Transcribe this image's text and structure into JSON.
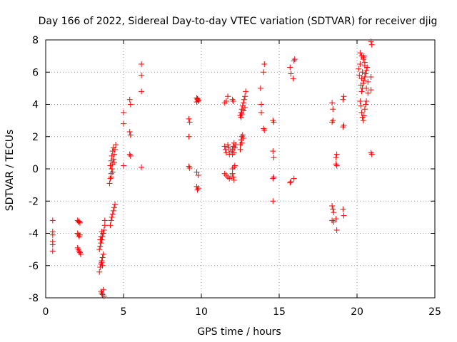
{
  "chart_data": {
    "type": "scatter",
    "title": "Day 166 of 2022, Sidereal Day-to-day VTEC variation (SDTVAR) for receiver djig",
    "xlabel": "GPS time / hours",
    "ylabel": "SDTVAR / TECUs",
    "xlim": [
      0,
      25
    ],
    "ylim": [
      -8,
      8
    ],
    "x_ticks": [
      0,
      5,
      10,
      15,
      20,
      25
    ],
    "y_ticks": [
      -8,
      -6,
      -4,
      -2,
      0,
      2,
      4,
      6,
      8
    ],
    "x_tick_labels": [
      "0",
      "5",
      "10",
      "15",
      "20",
      "25"
    ],
    "y_tick_labels": [
      "-8",
      "-6",
      "-4",
      "-2",
      "0",
      "2",
      "4",
      "6",
      "8"
    ],
    "grid": true,
    "marker": "+",
    "color": "#ff0000",
    "series": [
      {
        "name": "SDTVAR",
        "points": [
          [
            0.45,
            -3.2
          ],
          [
            0.45,
            -3.9
          ],
          [
            0.45,
            -4.1
          ],
          [
            0.45,
            -4.5
          ],
          [
            0.45,
            -4.7
          ],
          [
            0.45,
            -5.1
          ],
          [
            2.05,
            -3.2
          ],
          [
            2.1,
            -3.3
          ],
          [
            2.15,
            -3.25
          ],
          [
            2.2,
            -3.35
          ],
          [
            2.05,
            -4.0
          ],
          [
            2.1,
            -4.1
          ],
          [
            2.15,
            -4.2
          ],
          [
            2.2,
            -4.1
          ],
          [
            2.05,
            -4.9
          ],
          [
            2.1,
            -5.0
          ],
          [
            2.15,
            -5.1
          ],
          [
            2.2,
            -5.2
          ],
          [
            2.25,
            -5.3
          ],
          [
            3.45,
            -6.4
          ],
          [
            3.5,
            -6.1
          ],
          [
            3.55,
            -5.9
          ],
          [
            3.6,
            -5.7
          ],
          [
            3.65,
            -5.5
          ],
          [
            3.7,
            -5.3
          ],
          [
            3.45,
            -5.0
          ],
          [
            3.5,
            -4.8
          ],
          [
            3.55,
            -4.6
          ],
          [
            3.6,
            -4.4
          ],
          [
            3.65,
            -4.2
          ],
          [
            3.7,
            -4.0
          ],
          [
            3.75,
            -3.8
          ],
          [
            3.8,
            -3.5
          ],
          [
            3.8,
            -3.2
          ],
          [
            3.5,
            -4.4
          ],
          [
            3.55,
            -4.2
          ],
          [
            3.6,
            -3.9
          ],
          [
            3.6,
            -5.8
          ],
          [
            3.65,
            -6.0
          ],
          [
            3.55,
            -7.6
          ],
          [
            3.6,
            -7.7
          ],
          [
            3.65,
            -7.8
          ],
          [
            3.7,
            -7.5
          ],
          [
            3.75,
            -7.9
          ],
          [
            4.15,
            -3.5
          ],
          [
            4.2,
            -3.2
          ],
          [
            4.25,
            -3.0
          ],
          [
            4.3,
            -2.8
          ],
          [
            4.35,
            -2.6
          ],
          [
            4.4,
            -2.4
          ],
          [
            4.45,
            -2.2
          ],
          [
            4.1,
            -0.9
          ],
          [
            4.15,
            -0.6
          ],
          [
            4.2,
            -0.3
          ],
          [
            4.25,
            0.0
          ],
          [
            4.3,
            0.3
          ],
          [
            4.35,
            0.6
          ],
          [
            4.4,
            0.9
          ],
          [
            4.45,
            1.2
          ],
          [
            4.5,
            1.5
          ],
          [
            4.15,
            0.2
          ],
          [
            4.2,
            0.5
          ],
          [
            4.25,
            0.8
          ],
          [
            4.3,
            1.1
          ],
          [
            4.35,
            1.3
          ],
          [
            4.2,
            -0.5
          ],
          [
            4.3,
            -0.2
          ],
          [
            4.4,
            0.4
          ],
          [
            5.0,
            3.5
          ],
          [
            5.0,
            2.8
          ],
          [
            5.0,
            0.2
          ],
          [
            5.4,
            4.3
          ],
          [
            5.45,
            4.0
          ],
          [
            5.4,
            2.3
          ],
          [
            5.45,
            2.1
          ],
          [
            5.4,
            0.9
          ],
          [
            5.45,
            0.8
          ],
          [
            6.15,
            6.5
          ],
          [
            6.15,
            5.8
          ],
          [
            6.15,
            4.8
          ],
          [
            6.15,
            0.1
          ],
          [
            9.2,
            3.1
          ],
          [
            9.25,
            2.9
          ],
          [
            9.2,
            2.0
          ],
          [
            9.2,
            0.15
          ],
          [
            9.25,
            0.05
          ],
          [
            9.7,
            4.4
          ],
          [
            9.75,
            4.3
          ],
          [
            9.8,
            4.2
          ],
          [
            9.7,
            4.15
          ],
          [
            9.75,
            4.35
          ],
          [
            9.8,
            4.25
          ],
          [
            9.7,
            -0.2
          ],
          [
            9.8,
            -0.4
          ],
          [
            9.7,
            -1.1
          ],
          [
            9.75,
            -1.3
          ],
          [
            9.8,
            -1.2
          ],
          [
            11.5,
            4.1
          ],
          [
            11.6,
            4.2
          ],
          [
            11.7,
            4.5
          ],
          [
            12.0,
            4.3
          ],
          [
            12.05,
            4.2
          ],
          [
            11.5,
            1.4
          ],
          [
            11.55,
            1.2
          ],
          [
            11.6,
            1.0
          ],
          [
            11.7,
            1.5
          ],
          [
            11.75,
            1.3
          ],
          [
            11.8,
            0.9
          ],
          [
            11.9,
            1.1
          ],
          [
            12.0,
            1.2
          ],
          [
            12.05,
            1.4
          ],
          [
            12.1,
            1.6
          ],
          [
            12.15,
            1.3
          ],
          [
            12.2,
            1.5
          ],
          [
            12.0,
            0.9
          ],
          [
            12.1,
            1.0
          ],
          [
            11.5,
            -0.3
          ],
          [
            11.6,
            -0.4
          ],
          [
            11.7,
            -0.5
          ],
          [
            11.8,
            -0.6
          ],
          [
            11.9,
            -0.5
          ],
          [
            12.0,
            -0.3
          ],
          [
            12.05,
            -0.5
          ],
          [
            12.1,
            -0.7
          ],
          [
            12.0,
            0.0
          ],
          [
            12.1,
            0.1
          ],
          [
            12.15,
            0.2
          ],
          [
            12.5,
            1.5
          ],
          [
            12.55,
            1.8
          ],
          [
            12.6,
            2.0
          ],
          [
            12.65,
            2.1
          ],
          [
            12.7,
            1.9
          ],
          [
            12.5,
            1.2
          ],
          [
            12.6,
            1.6
          ],
          [
            12.5,
            3.3
          ],
          [
            12.55,
            3.5
          ],
          [
            12.6,
            3.7
          ],
          [
            12.65,
            3.9
          ],
          [
            12.7,
            4.1
          ],
          [
            12.75,
            4.3
          ],
          [
            12.8,
            4.5
          ],
          [
            12.85,
            4.8
          ],
          [
            12.55,
            3.2
          ],
          [
            12.6,
            3.4
          ],
          [
            12.7,
            3.6
          ],
          [
            12.8,
            3.8
          ],
          [
            13.8,
            5.0
          ],
          [
            13.85,
            4.0
          ],
          [
            13.85,
            3.5
          ],
          [
            14.05,
            6.5
          ],
          [
            14.0,
            6.0
          ],
          [
            14.0,
            2.5
          ],
          [
            14.05,
            2.4
          ],
          [
            14.6,
            3.0
          ],
          [
            14.65,
            2.9
          ],
          [
            14.6,
            1.1
          ],
          [
            14.65,
            0.7
          ],
          [
            14.6,
            -0.6
          ],
          [
            14.65,
            -0.5
          ],
          [
            14.6,
            -2.0
          ],
          [
            15.7,
            6.3
          ],
          [
            15.75,
            5.9
          ],
          [
            15.9,
            5.6
          ],
          [
            15.95,
            6.7
          ],
          [
            16.0,
            6.8
          ],
          [
            15.7,
            -0.85
          ],
          [
            15.75,
            -0.8
          ],
          [
            15.95,
            -0.6
          ],
          [
            18.4,
            4.1
          ],
          [
            18.45,
            3.7
          ],
          [
            18.4,
            2.9
          ],
          [
            18.45,
            3.0
          ],
          [
            18.4,
            -2.3
          ],
          [
            18.45,
            -2.5
          ],
          [
            18.5,
            -2.7
          ],
          [
            18.4,
            -3.2
          ],
          [
            18.5,
            -3.3
          ],
          [
            18.65,
            -3.1
          ],
          [
            18.7,
            -3.8
          ],
          [
            18.65,
            0.7
          ],
          [
            18.7,
            0.9
          ],
          [
            18.65,
            0.3
          ],
          [
            18.7,
            0.2
          ],
          [
            19.1,
            4.3
          ],
          [
            19.15,
            4.5
          ],
          [
            19.1,
            2.6
          ],
          [
            19.15,
            2.7
          ],
          [
            19.1,
            -2.5
          ],
          [
            19.15,
            -2.9
          ],
          [
            20.1,
            6.2
          ],
          [
            20.15,
            5.8
          ],
          [
            20.2,
            6.5
          ],
          [
            20.25,
            5.2
          ],
          [
            20.3,
            5.6
          ],
          [
            20.35,
            6.0
          ],
          [
            20.4,
            6.8
          ],
          [
            20.45,
            7.0
          ],
          [
            20.5,
            6.6
          ],
          [
            20.2,
            4.2
          ],
          [
            20.25,
            3.9
          ],
          [
            20.3,
            3.5
          ],
          [
            20.35,
            3.2
          ],
          [
            20.4,
            3.0
          ],
          [
            20.45,
            3.3
          ],
          [
            20.5,
            3.7
          ],
          [
            20.55,
            4.0
          ],
          [
            20.6,
            4.2
          ],
          [
            20.3,
            4.8
          ],
          [
            20.35,
            5.0
          ],
          [
            20.4,
            5.3
          ],
          [
            20.45,
            5.5
          ],
          [
            20.5,
            5.7
          ],
          [
            20.55,
            5.9
          ],
          [
            20.6,
            6.1
          ],
          [
            20.65,
            6.3
          ],
          [
            20.7,
            5.4
          ],
          [
            20.2,
            7.2
          ],
          [
            20.3,
            7.0
          ],
          [
            20.4,
            6.9
          ],
          [
            20.5,
            6.4
          ],
          [
            20.6,
            5.0
          ],
          [
            20.7,
            4.7
          ],
          [
            20.9,
            5.7
          ],
          [
            20.95,
            7.7
          ],
          [
            20.9,
            7.9
          ],
          [
            20.9,
            4.9
          ],
          [
            20.9,
            1.0
          ],
          [
            20.95,
            0.9
          ]
        ]
      }
    ]
  }
}
